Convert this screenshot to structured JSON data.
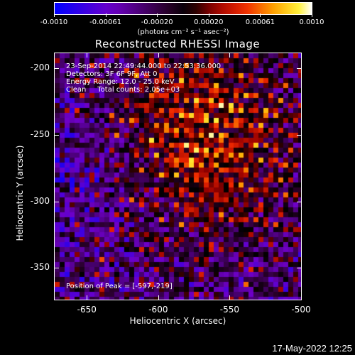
{
  "colorbar": {
    "ticks": [
      "-0.0010",
      "-0.00061",
      "-0.00020",
      "0.00020",
      "0.00061",
      "0.0010"
    ],
    "units": "(photons cm⁻² s⁻¹ asec⁻²)"
  },
  "title": "Reconstructed RHESSI Image",
  "annotations": {
    "line1": "23-Sep-2014 22:49:44.000 to 22:53:36.000",
    "line2": "Detectors: 3F 6F 9F, Att 0",
    "line3": "Energy Range: 12.0 - 25.0 keV",
    "line4": "Clean     Total counts: 2.05e+03",
    "peak": "Position of Peak = [-597,-219]"
  },
  "axes": {
    "xlabel": "Heliocentric X (arcsec)",
    "ylabel": "Heliocentric Y (arcsec)",
    "xticks": [
      "-650",
      "-600",
      "-550",
      "-500"
    ],
    "yticks": [
      "-200",
      "-250",
      "-300",
      "-350"
    ]
  },
  "timestamp": "17-May-2022 12:25"
}
